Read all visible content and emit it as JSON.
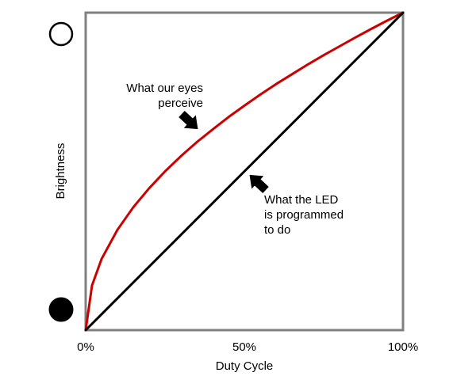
{
  "chart_data": {
    "type": "line",
    "xlabel": "Duty Cycle",
    "ylabel": "Brightness",
    "x_tick_labels": [
      "0%",
      "50%",
      "100%"
    ],
    "x_ticks": [
      0,
      50,
      100
    ],
    "xlim": [
      0,
      100
    ],
    "ylim": [
      0,
      100
    ],
    "grid": false,
    "series": [
      {
        "name": "What our eyes perceive",
        "color": "#cc0000",
        "x": [
          0,
          2,
          5,
          10,
          15,
          20,
          25,
          30,
          35,
          40,
          45,
          50,
          55,
          60,
          65,
          70,
          75,
          80,
          85,
          90,
          95,
          100
        ],
        "y": [
          0,
          14.1,
          22.4,
          31.6,
          38.7,
          44.7,
          50.0,
          54.8,
          59.2,
          63.2,
          67.1,
          70.7,
          74.2,
          77.5,
          80.6,
          83.7,
          86.6,
          89.4,
          92.2,
          94.9,
          97.5,
          100
        ]
      },
      {
        "name": "What the LED is programmed to do",
        "color": "#000000",
        "x": [
          0,
          100
        ],
        "y": [
          0,
          100
        ]
      }
    ],
    "annotations": [
      {
        "id": "perceived",
        "lines": [
          "What our eyes",
          "perceive"
        ],
        "target_x": 35,
        "target_y": 60
      },
      {
        "id": "programmed",
        "lines": [
          "What the LED",
          "is programmed",
          "to do"
        ],
        "target_x": 50,
        "target_y": 49
      }
    ],
    "scale_icons": [
      {
        "name": "bright-empty-circle-icon",
        "fill": "#ffffff",
        "stroke": "#000000",
        "level": "top"
      },
      {
        "name": "dark-filled-circle-icon",
        "fill": "#000000",
        "stroke": "#000000",
        "level": "bottom"
      }
    ],
    "frame_color": "#808080"
  }
}
